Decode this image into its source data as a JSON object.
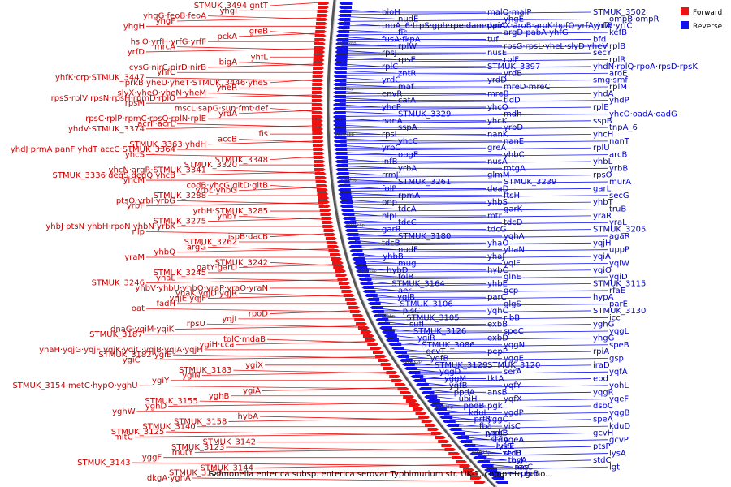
{
  "caption": "Salmonella enterica subsp. enterica serovar Typhimurium str. UK-1, complete geno...",
  "legend": [
    {
      "label": "Forward",
      "color": "#ee1111"
    },
    {
      "label": "Reverse",
      "color": "#1111ee"
    }
  ],
  "colors": {
    "forward": "#ee1111",
    "reverse": "#1111ee",
    "forward_text": "#cc0000",
    "reverse_text": "#0000cc",
    "backbone": "#555555"
  },
  "kbp_marks": [
    "3600 kbp",
    "3550 kbp",
    "3500 kbp",
    "3450 kbp",
    "3400 kbp",
    "3350 kbp",
    "3300 kbp",
    "3250 kbp",
    "3200 kbp",
    "3150 kbp"
  ],
  "forward_labels": [
    "STMUK_3494 gntT",
    "yhgI",
    "yhgG·feoB·feoA",
    "yhgF",
    "yhgH",
    "greB",
    "pckA",
    "hslO·yrfH·yrfG·yrfF",
    "mrcA",
    "yrfD",
    "yhfL",
    "bigA",
    "cysG·nirC·nirD·nirB",
    "yhfC",
    "yhfK·crp·STMUK_3447",
    "prkB·yheU·yheT·STMUK_3446·yheS",
    "yheR",
    "slyX·yheO·yheN·yheM",
    "rpsS·rplV·rpsN·rpsH·rpmD·rplO",
    "rpsM",
    "mscL·sapG·sun·fmt·def",
    "yrdA",
    "rpsC·rplP·rpmC·rpsQ·rplN·rplE",
    "acrF·acrE",
    "yhdV·STMUK_3374",
    "fis",
    "accB",
    "STMUK_3363·yhdH",
    "yhdJ·prmA·panF·yhdT·accC·STMUK_3364",
    "yhcS",
    "STMUK_3348",
    "STMUK_3320",
    "yhcN·argR·STMUK_3341",
    "STMUK_3336·degS·degQ·yhcB",
    "yhcM",
    "codB·yhcG·gltD·gltB",
    "yrbL·yhbG",
    "STMUK_3288",
    "ptsO·yrbI·yrbG",
    "yrbF",
    "yrbH·STMUK_3285",
    "yhbY",
    "STMUK_3275",
    "yhbJ·ptsN·yhbH·rpoN·yhbN·yrbK",
    "nlp",
    "ispB·dacB",
    "STMUK_3262",
    "argG",
    "yhbQ",
    "yraM",
    "STMUK_3242",
    "gatY·garD",
    "STMUK_3245",
    "yhaL",
    "STMUK_3246",
    "yhbV·yhbU·yhbO·yraP·yraO·yraN",
    "yhaK·yqjD·yqjR",
    "yqjE·yqjF",
    "fadH",
    "oat",
    "rpoD",
    "yqjI",
    "rpsU",
    "dnaG·yqiM·yqiK",
    "STMUK_3187",
    "tolC·mdaB",
    "ygiH·cca",
    "yhaH·yqjG·yqjF·yqjK·yqjC·yqjB·yqjA·yqjH",
    "STMUK_3182·ygiE",
    "ygiC",
    "ygiX",
    "STMUK_3183",
    "ygiN",
    "ygiY",
    "STMUK_3154·metC·hypO·yghU",
    "ygiA",
    "yghB",
    "STMUK_3155",
    "yghD",
    "yghW",
    "hybA",
    "STMUK_3158",
    "STMUK_3140",
    "STMUK_3125",
    "mltC",
    "STMUK_3142",
    "STMUK_3123",
    "mutY",
    "yggF",
    "STMUK_3143",
    "STMUK_3144",
    "STMUK_3159",
    "dkgA·yghA"
  ],
  "reverse_labels": [
    "bioH",
    "malQ·malP",
    "STMUK_3502",
    "nudE",
    "yhgE",
    "ompB·ompR",
    "tnpA_6·trpS·gph·rpe·dam·damX·aroB·aroK·hofQ·yrfA·yrfB·yrfC",
    "ppiA",
    "yhfA",
    "fic",
    "argD·pabA·yhfG",
    "kefB",
    "fusA·fkpA",
    "tuf",
    "bfd",
    "rplW",
    "rpsG·rpsL·yheL·slyD·yheV",
    "rplB",
    "rpsJ",
    "nusE",
    "secY",
    "rpsE",
    "rplF",
    "rplR",
    "rplC",
    "STMUK_3397",
    "yhdN·rplQ·rpoA·rpsD·rpsK",
    "zntR",
    "yrdB",
    "aroE",
    "yrdC",
    "yrdD",
    "smg·smf",
    "maf",
    "mreD·mreC",
    "rplM",
    "envR",
    "mreB",
    "yhdA",
    "cafA",
    "tldD",
    "yhdP",
    "yhcP",
    "yhcO",
    "rplE",
    "STMUK_3329",
    "mdh",
    "yhcO·oadA·oadG",
    "nanA",
    "yhcK",
    "sspB",
    "sspA",
    "yrbD",
    "tnpA_6",
    "rpsI",
    "nanK",
    "yhcH",
    "yhcC",
    "nanE",
    "nanT",
    "yrbC",
    "greA",
    "rplU",
    "obgE",
    "yhbC",
    "arcB",
    "infB",
    "nusA",
    "yhbL",
    "yrbA",
    "mtgA",
    "yrbB",
    "rrmJ",
    "glmM",
    "rpsO",
    "STMUK_3261",
    "STMUK_3239",
    "murA",
    "folP",
    "deaD",
    "garL",
    "rpmA",
    "ftsH",
    "secG",
    "pnp",
    "yhbS",
    "yhbT",
    "tdcA",
    "garK",
    "truB",
    "nlpI",
    "mtr",
    "yraR",
    "tdcC",
    "tdcD",
    "yraL",
    "garR",
    "tdcG",
    "STMUK_3205",
    "STMUK_3180",
    "yqhA",
    "agaR",
    "tdcB",
    "yhaO",
    "yqjH",
    "nudF",
    "yhaN",
    "uppP",
    "yhbB",
    "yhaJ",
    "yqiA",
    "mug",
    "yqiF",
    "yqiW",
    "hybD",
    "hybC",
    "yqiO",
    "folB",
    "glnE",
    "yqiD",
    "STMUK_3164",
    "yhbE",
    "STMUK_3115",
    "aer",
    "gcp",
    "rfaE",
    "yqiB",
    "parC",
    "hypA",
    "STMUK_3106",
    "glgS",
    "parE",
    "plsC",
    "yqhC",
    "STMUK_3130",
    "STMUK_3105",
    "ribB",
    "icc",
    "sufI",
    "exbB",
    "yghG",
    "STMUK_3126",
    "speC",
    "yqgL",
    "ygiR",
    "exbD",
    "yhgG",
    "STMUK_3086",
    "yqgN",
    "speB",
    "gcvT",
    "pepP",
    "rpiA",
    "yqfB",
    "yggE",
    "gsp",
    "STMUK_3129",
    "STMUK_3120",
    "iraD",
    "yqgD",
    "serA",
    "yqfA",
    "yggM",
    "tktA",
    "epd",
    "yqfB",
    "yqfY",
    "yohL",
    "ppdA",
    "ansB",
    "yqgR",
    "ubiH",
    "yqfX",
    "yqeF",
    "ppdB",
    "pgk",
    "dsbC",
    "kduI",
    "ygdP",
    "yqgB",
    "prfB",
    "yggC",
    "speA",
    "fba",
    "visC",
    "kduD",
    "ppdC",
    "yggB",
    "gcvH",
    "stdA",
    "yqeA",
    "gcvP",
    "lysS",
    "araE",
    "ptsP",
    "xerD",
    "stdB",
    "lysA",
    "thyA",
    "recJ",
    "stdC",
    "aas",
    "recC",
    "lgt",
    "ptr",
    "recB"
  ]
}
